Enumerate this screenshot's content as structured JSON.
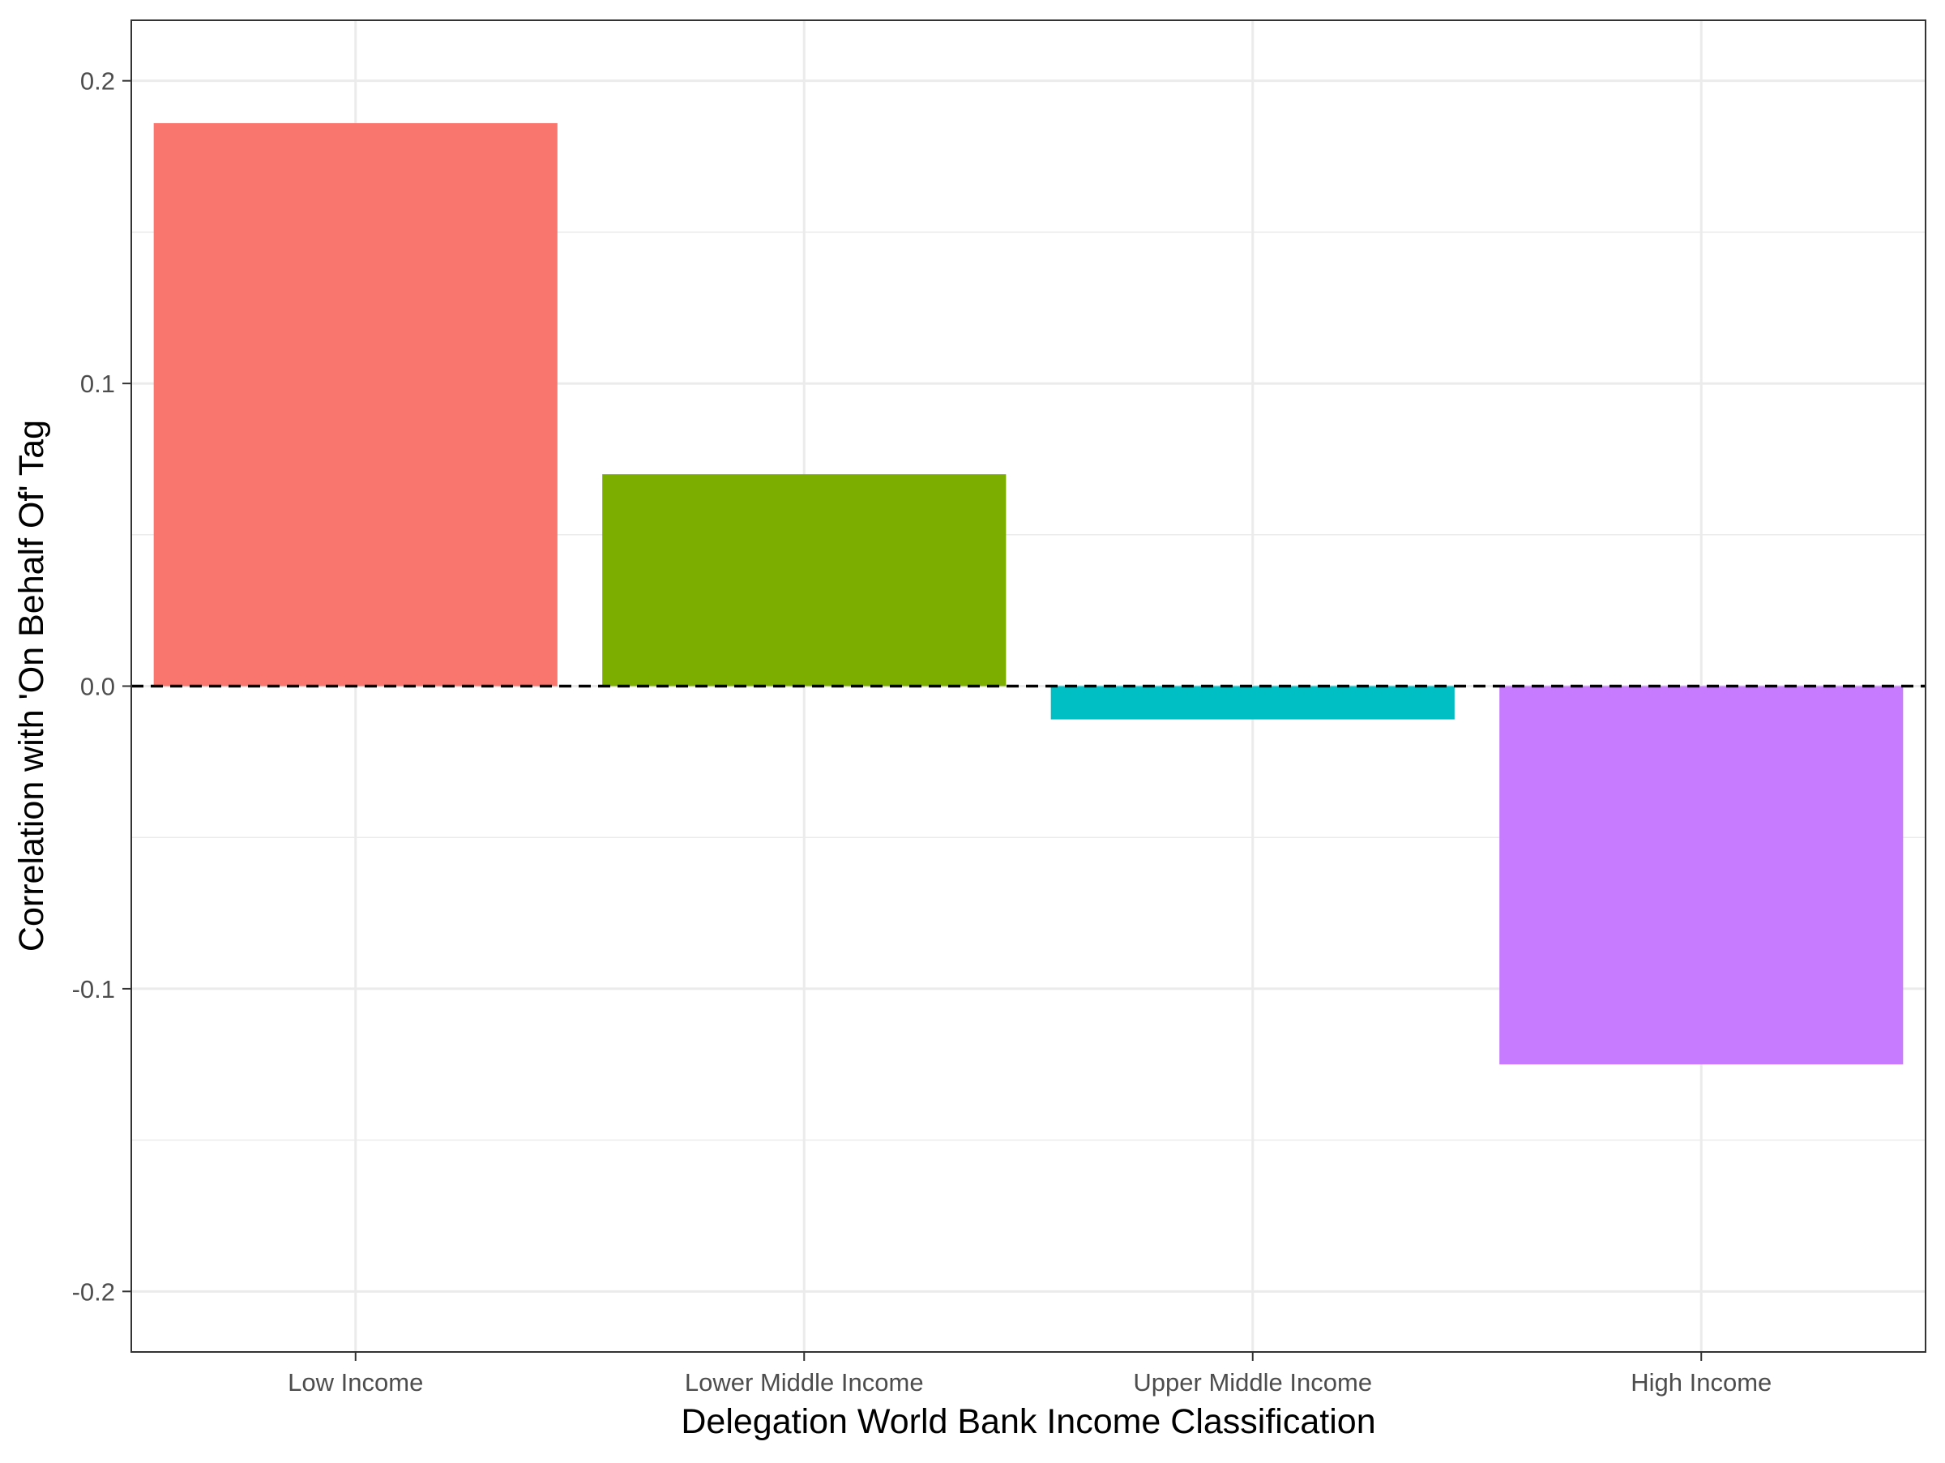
{
  "chart_data": {
    "type": "bar",
    "title": "",
    "xlabel": "Delegation World Bank Income Classification",
    "ylabel": "Correlation with 'On Behalf Of' Tag",
    "categories": [
      "Low Income",
      "Lower Middle Income",
      "Upper Middle Income",
      "High Income"
    ],
    "values": [
      0.186,
      0.07,
      -0.011,
      -0.125
    ],
    "colors": [
      "#F8766D",
      "#7CAE00",
      "#00BFC4",
      "#C77CFF"
    ],
    "ylim": [
      -0.22,
      0.22
    ],
    "yticks": [
      -0.2,
      -0.1,
      0.0,
      0.1,
      0.2
    ],
    "ytick_labels": [
      "-0.2",
      "-0.1",
      "0.0",
      "0.1",
      "0.2"
    ],
    "reference_line": {
      "y": 0,
      "style": "dashed",
      "color": "#000000"
    },
    "grid": true,
    "legend": "none"
  }
}
